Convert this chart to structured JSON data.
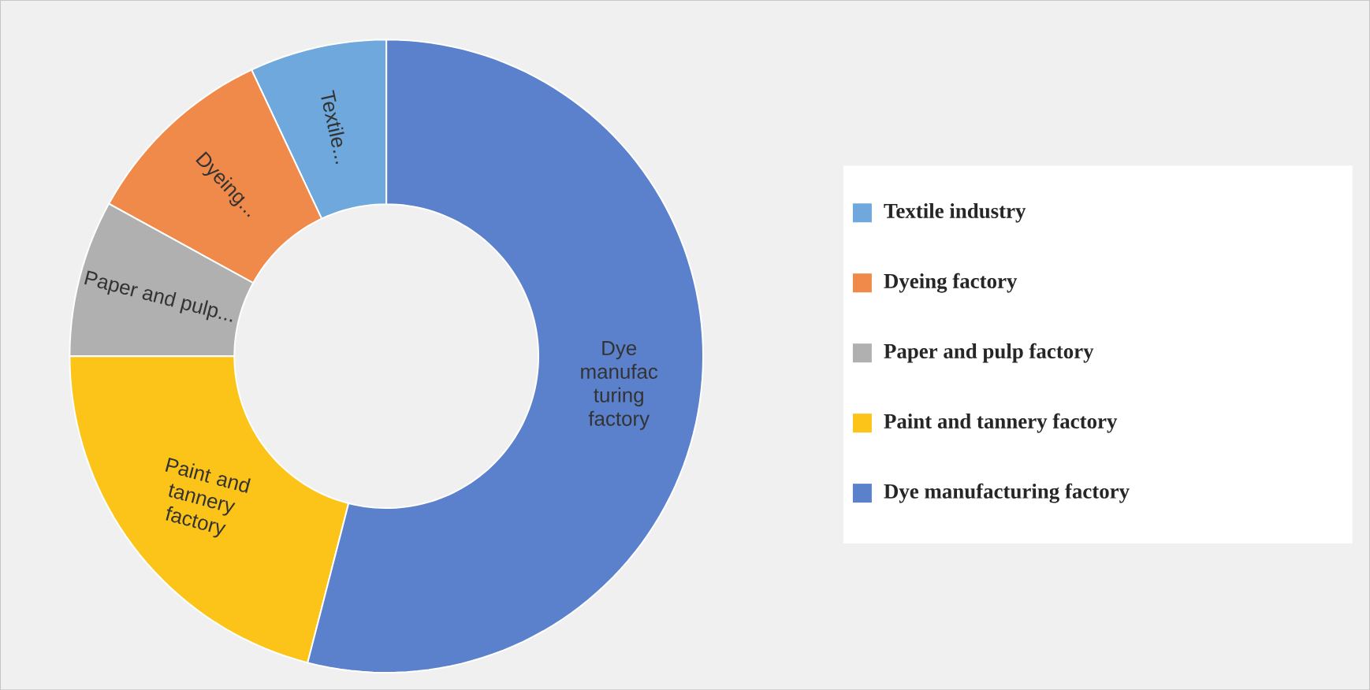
{
  "chart_data": {
    "type": "donut",
    "categories": [
      "Textile industry",
      "Dyeing factory",
      "Paper and pulp factory",
      "Paint and tannery factory",
      "Dye manufacturing factory"
    ],
    "values": [
      7,
      10,
      8,
      21,
      54
    ],
    "colors": [
      "#6fa8dc",
      "#f08a4b",
      "#b0b0b0",
      "#fcc419",
      "#5b80cc"
    ],
    "annotations": [
      "Textile...",
      "Dyeing...",
      "Paper and pulp...",
      "Paint and tannery factory",
      "Dye manufac turing factory"
    ],
    "legend": "right"
  }
}
